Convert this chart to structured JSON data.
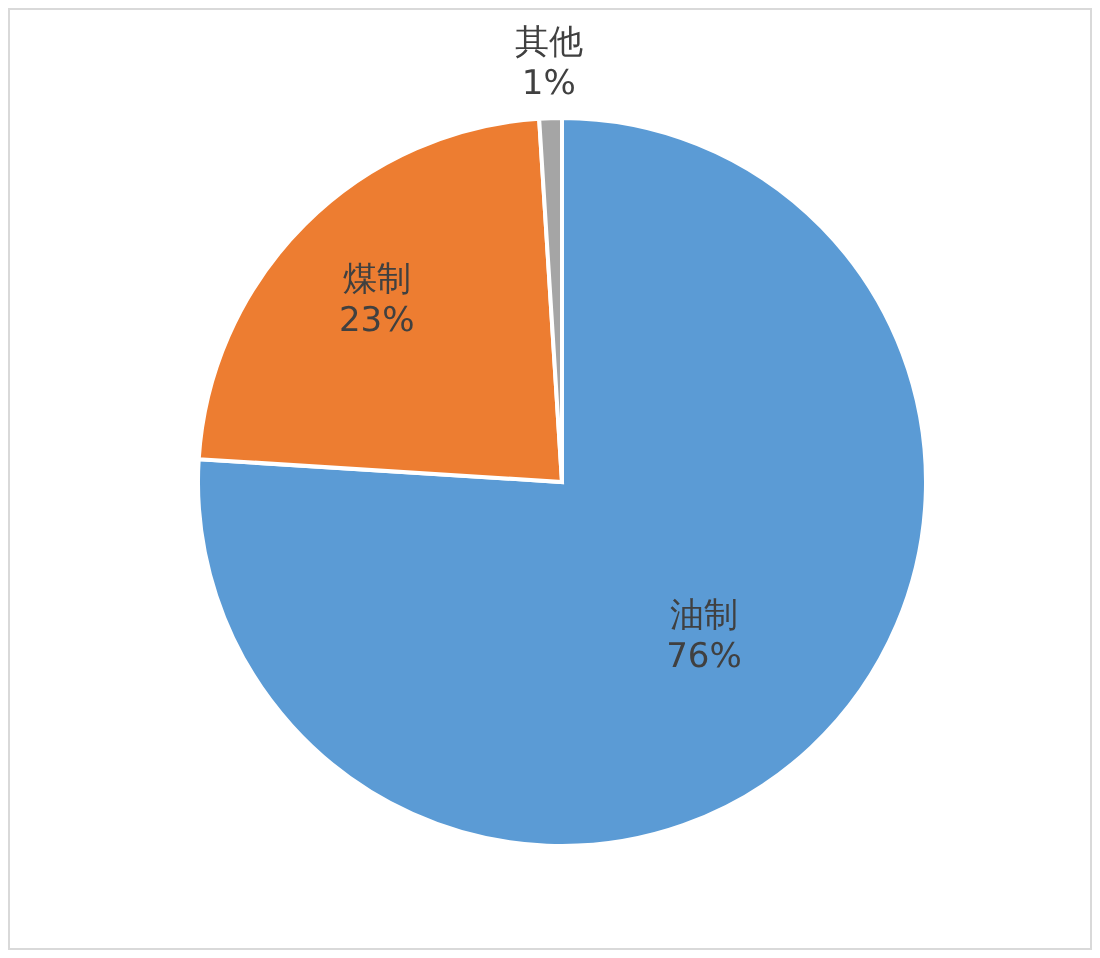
{
  "chart_data": {
    "type": "pie",
    "categories": [
      "油制",
      "煤制",
      "其他"
    ],
    "values": [
      76,
      23,
      1
    ],
    "value_labels": [
      "76%",
      "23%",
      "1%"
    ],
    "colors": [
      "#5b9bd5",
      "#ed7d31",
      "#a5a5a5"
    ],
    "legend": false
  }
}
